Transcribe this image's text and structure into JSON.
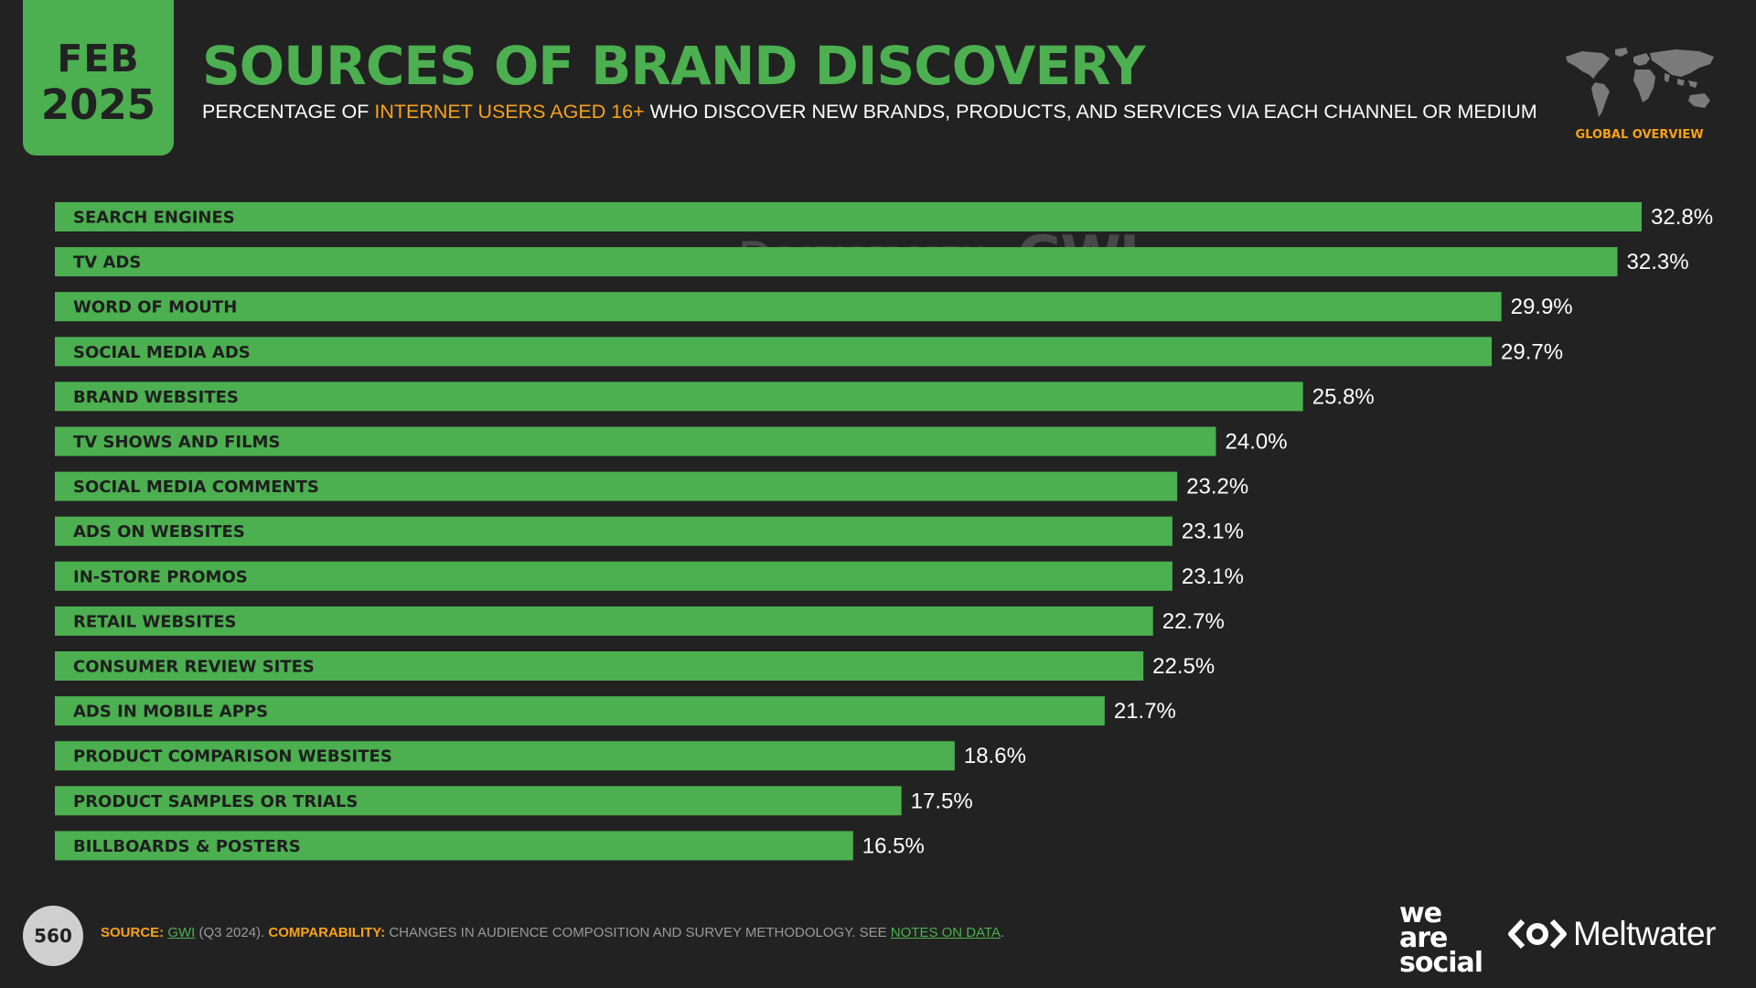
{
  "header": {
    "date_month": "FEB",
    "date_year": "2025",
    "title": "SOURCES OF BRAND DISCOVERY",
    "subtitle_pre": "PERCENTAGE OF ",
    "subtitle_highlight": "INTERNET USERS AGED 16+",
    "subtitle_post": " WHO DISCOVER NEW BRANDS, PRODUCTS, AND SERVICES VIA EACH CHANNEL OR MEDIUM",
    "region_label": "GLOBAL OVERVIEW"
  },
  "watermark": {
    "datareportal": "DATAREPORTAL",
    "gwi": "GWI."
  },
  "colors": {
    "background": "#222222",
    "accent_green": "#4CAF50",
    "accent_orange": "#F7A21B",
    "text_white": "#FFFFFF",
    "bar_label_dark": "#1E1E1E"
  },
  "chart_data": {
    "type": "bar",
    "orientation": "horizontal",
    "categories": [
      "SEARCH ENGINES",
      "TV ADS",
      "WORD OF MOUTH",
      "SOCIAL MEDIA ADS",
      "BRAND WEBSITES",
      "TV SHOWS AND FILMS",
      "SOCIAL MEDIA COMMENTS",
      "ADS ON WEBSITES",
      "IN-STORE PROMOS",
      "RETAIL WEBSITES",
      "CONSUMER REVIEW SITES",
      "ADS IN MOBILE APPS",
      "PRODUCT COMPARISON WEBSITES",
      "PRODUCT SAMPLES OR TRIALS",
      "BILLBOARDS & POSTERS"
    ],
    "values": [
      32.8,
      32.3,
      29.9,
      29.7,
      25.8,
      24.0,
      23.2,
      23.1,
      23.1,
      22.7,
      22.5,
      21.7,
      18.6,
      17.5,
      16.5
    ],
    "value_labels": [
      "32.8%",
      "32.3%",
      "29.9%",
      "29.7%",
      "25.8%",
      "24.0%",
      "23.2%",
      "23.1%",
      "23.1%",
      "22.7%",
      "22.5%",
      "21.7%",
      "18.6%",
      "17.5%",
      "16.5%"
    ],
    "unit": "%",
    "xlim": [
      0,
      32.8
    ],
    "grid": false,
    "legend": "none"
  },
  "footer": {
    "page_number": "560",
    "source_label": "SOURCE:",
    "source_link": "GWI",
    "source_detail": " (Q3 2024). ",
    "comparability_label": "COMPARABILITY:",
    "comparability_text": " CHANGES IN AUDIENCE COMPOSITION AND SURVEY METHODOLOGY. SEE ",
    "notes_link": "NOTES ON DATA",
    "notes_end": ".",
    "logo_was_1": "we",
    "logo_was_2": "are",
    "logo_was_3": "social",
    "logo_meltwater": "Meltwater"
  }
}
